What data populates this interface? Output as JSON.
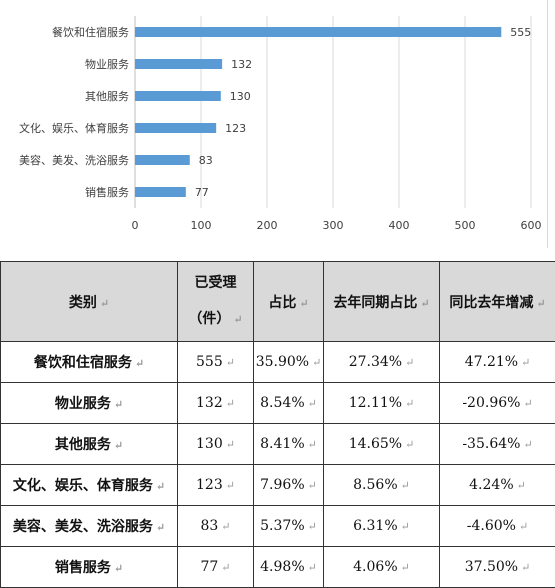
{
  "chart_data": {
    "type": "bar",
    "orientation": "horizontal",
    "categories": [
      "餐饮和住宿服务",
      "物业服务",
      "其他服务",
      "文化、娱乐、体育服务",
      "美容、美发、洗浴服务",
      "销售服务"
    ],
    "values": [
      555,
      132,
      130,
      123,
      83,
      77
    ],
    "xlim": [
      0,
      600
    ],
    "xticks": [
      0,
      100,
      200,
      300,
      400,
      500,
      600
    ],
    "grid": true,
    "bar_color": "#5b9bd5"
  },
  "table": {
    "headers": {
      "category": "类别",
      "accepted_line1": "已受理",
      "accepted_line2": "（件）",
      "share": "占比",
      "last_year_share": "去年同期占比",
      "yoy_change": "同比去年增减"
    },
    "rows": [
      {
        "category": "餐饮和住宿服务",
        "accepted": "555",
        "share": "35.90%",
        "last_year_share": "27.34%",
        "yoy_change": "47.21%"
      },
      {
        "category": "物业服务",
        "accepted": "132",
        "share": "8.54%",
        "last_year_share": "12.11%",
        "yoy_change": "-20.96%"
      },
      {
        "category": "其他服务",
        "accepted": "130",
        "share": "8.41%",
        "last_year_share": "14.65%",
        "yoy_change": "-35.64%"
      },
      {
        "category": "文化、娱乐、体育服务",
        "accepted": "123",
        "share": "7.96%",
        "last_year_share": "8.56%",
        "yoy_change": "4.24%"
      },
      {
        "category": "美容、美发、洗浴服务",
        "accepted": "83",
        "share": "5.37%",
        "last_year_share": "6.31%",
        "yoy_change": "-4.60%"
      },
      {
        "category": "销售服务",
        "accepted": "77",
        "share": "4.98%",
        "last_year_share": "4.06%",
        "yoy_change": "37.50%"
      }
    ]
  }
}
